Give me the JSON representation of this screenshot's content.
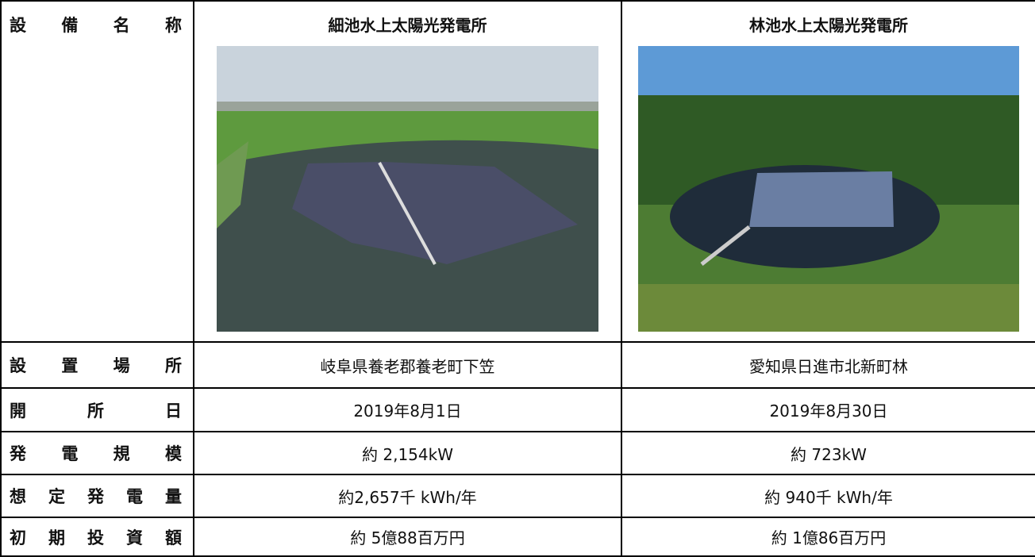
{
  "table": {
    "header": [
      "設備名称",
      "細池水上太陽光発電所",
      "林池水上太陽光発電所"
    ],
    "rows": [
      [
        "設置場所",
        "岐阜県養老郡養老町下笠",
        "愛知県日進市北新町林"
      ],
      [
        "開所日",
        "2019年8月1日",
        "2019年8月30日"
      ],
      [
        "発電規模",
        "約 2,154kW",
        "約 723kW"
      ],
      [
        "想定発電量",
        "約2,657千 kWh/年",
        "約 940千 kWh/年"
      ],
      [
        "初期投資額",
        "約 5億88百万円",
        "約 1億86百万円"
      ]
    ]
  }
}
